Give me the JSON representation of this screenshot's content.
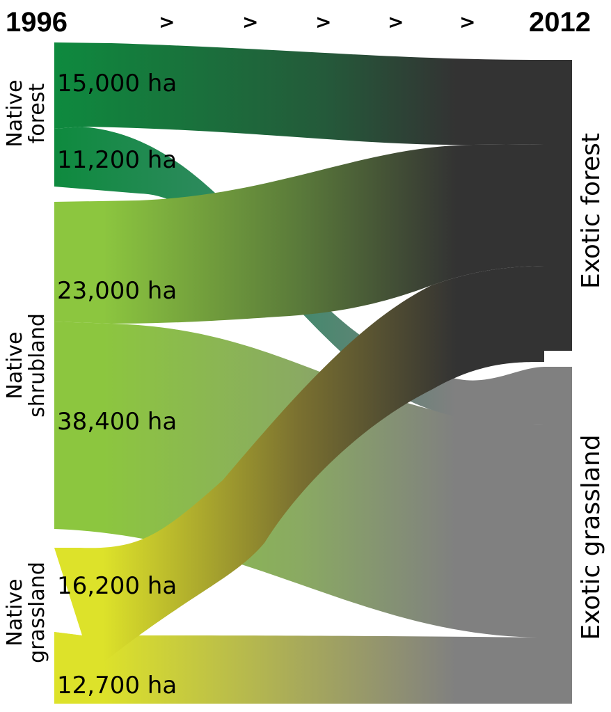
{
  "header": {
    "start_year": "1996",
    "end_year": "2012",
    "arrows": [
      ">",
      ">",
      ">",
      ">",
      ">"
    ]
  },
  "sources": [
    {
      "line1": "Native",
      "line2": "forest"
    },
    {
      "line1": "Native",
      "line2": "shrubland"
    },
    {
      "line1": "Native",
      "line2": "grassland"
    }
  ],
  "targets": [
    {
      "label": "Exotic forest"
    },
    {
      "label": "Exotic grassland"
    }
  ],
  "flows": [
    {
      "label": "15,000 ha"
    },
    {
      "label": "11,200 ha"
    },
    {
      "label": "23,000 ha"
    },
    {
      "label": "38,400 ha"
    },
    {
      "label": "16,200 ha"
    },
    {
      "label": "12,700 ha"
    }
  ],
  "chart_data": {
    "type": "sankey",
    "nodes_left": [
      "Native forest",
      "Native shrubland",
      "Native grassland"
    ],
    "nodes_right": [
      "Exotic forest",
      "Exotic grassland"
    ],
    "links": [
      {
        "source": "Native forest",
        "target": "Exotic forest",
        "value": 15000,
        "label": "15,000 ha"
      },
      {
        "source": "Native forest",
        "target": "Exotic grassland",
        "value": 11200,
        "label": "11,200 ha"
      },
      {
        "source": "Native shrubland",
        "target": "Exotic forest",
        "value": 23000,
        "label": "23,000 ha"
      },
      {
        "source": "Native shrubland",
        "target": "Exotic grassland",
        "value": 38400,
        "label": "38,400 ha"
      },
      {
        "source": "Native grassland",
        "target": "Exotic forest",
        "value": 16200,
        "label": "16,200 ha"
      },
      {
        "source": "Native grassland",
        "target": "Exotic grassland",
        "value": 12700,
        "label": "12,700 ha"
      }
    ],
    "colors": {
      "native_forest": "#0e8a3e",
      "native_shrubland": "#8cc63f",
      "native_grassland": "#dde22a",
      "exotic_forest": "#333333",
      "exotic_grassland": "#808080"
    }
  }
}
